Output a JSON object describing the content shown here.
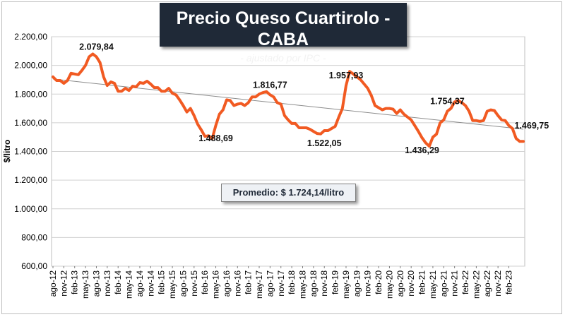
{
  "header": {
    "title": "Precio Queso Cuartirolo - CABA",
    "subtitle": "- ajustado por IPC -"
  },
  "average_label": "Promedio: $ 1.724,14/litro",
  "colors": {
    "series": "#f15a22",
    "trend": "#8c8c8c",
    "title_bg": "#1f2937",
    "grid": "#d0d0d0"
  },
  "chart_data": {
    "type": "line",
    "title": "Precio Queso Cuartirolo - CABA",
    "ylabel": "$/litro",
    "ylim": [
      600,
      2200
    ],
    "y_ticks": [
      "600,00",
      "800,00",
      "1.000,00",
      "1.200,00",
      "1.400,00",
      "1.600,00",
      "1.800,00",
      "2.000,00",
      "2.200,00"
    ],
    "x_tick_labels": [
      "ago-12",
      "nov-12",
      "feb-13",
      "may-13",
      "ago-13",
      "nov-13",
      "feb-14",
      "may-14",
      "ago-14",
      "nov-14",
      "feb-15",
      "may-15",
      "ago-15",
      "nov-15",
      "feb-16",
      "may-16",
      "ago-16",
      "nov-16",
      "feb-17",
      "may-17",
      "ago-17",
      "nov-17",
      "feb-18",
      "may-18",
      "ago-18",
      "nov-18",
      "feb-19",
      "may-19",
      "ago-19",
      "nov-19",
      "feb-20",
      "may-20",
      "ago-20",
      "nov-20",
      "feb-21",
      "may-21",
      "ago-21",
      "nov-21",
      "feb-22",
      "may-22",
      "ago-22",
      "nov-22",
      "feb-23"
    ],
    "grid": "horizontal",
    "trendline": {
      "start": 1905,
      "end": 1555
    },
    "annotations": [
      {
        "index": 12,
        "text": "2.079,84"
      },
      {
        "index": 45,
        "text": "1.488,69"
      },
      {
        "index": 60,
        "text": "1.816,77"
      },
      {
        "index": 75,
        "text": "1.522,05"
      },
      {
        "index": 81,
        "text": "1.957,93"
      },
      {
        "index": 102,
        "text": "1.436,29"
      },
      {
        "index": 109,
        "text": "1.754,37"
      },
      {
        "index": 126,
        "text": "1.469,75"
      }
    ],
    "series": [
      {
        "values": [
          1920,
          1895,
          1895,
          1875,
          1895,
          1945,
          1940,
          1935,
          1965,
          2000,
          2060,
          2079.84,
          2060,
          2020,
          1920,
          1860,
          1885,
          1875,
          1820,
          1820,
          1840,
          1825,
          1855,
          1850,
          1880,
          1875,
          1890,
          1870,
          1845,
          1845,
          1820,
          1820,
          1840,
          1805,
          1795,
          1760,
          1720,
          1675,
          1700,
          1650,
          1590,
          1550,
          1505,
          1510,
          1488.69,
          1580,
          1660,
          1690,
          1760,
          1755,
          1720,
          1730,
          1735,
          1720,
          1740,
          1780,
          1780,
          1800,
          1810,
          1816.77,
          1795,
          1780,
          1740,
          1730,
          1650,
          1620,
          1595,
          1595,
          1565,
          1565,
          1565,
          1555,
          1540,
          1525,
          1522.05,
          1545,
          1545,
          1560,
          1575,
          1640,
          1700,
          1860,
          1957.93,
          1940,
          1920,
          1900,
          1870,
          1840,
          1790,
          1720,
          1705,
          1690,
          1700,
          1700,
          1695,
          1665,
          1690,
          1660,
          1640,
          1620,
          1580,
          1540,
          1495,
          1460,
          1436.29,
          1500,
          1520,
          1600,
          1620,
          1680,
          1700,
          1745,
          1754.37,
          1740,
          1720,
          1680,
          1615,
          1615,
          1610,
          1615,
          1680,
          1690,
          1685,
          1650,
          1620,
          1615,
          1580,
          1560,
          1490,
          1469.75,
          1469.75
        ]
      }
    ]
  }
}
